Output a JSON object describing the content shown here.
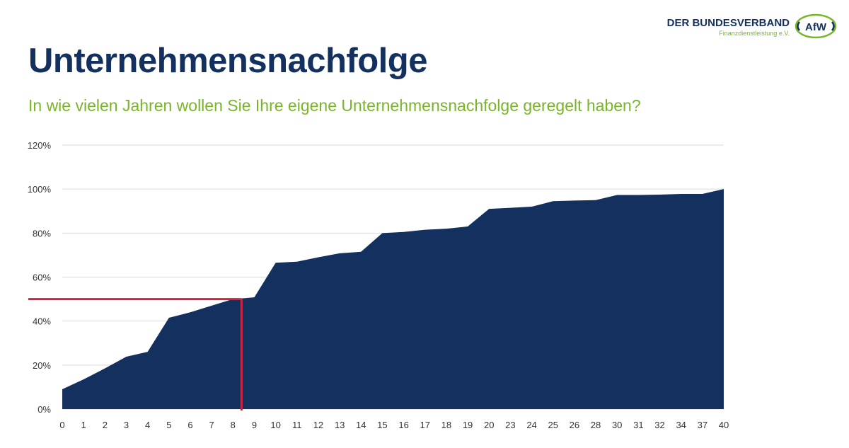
{
  "header": {
    "title": "Unternehmensnachfolge",
    "subtitle": "In wie vielen Jahren wollen Sie Ihre eigene Unternehmensnachfolge geregelt haben?"
  },
  "logo": {
    "name": "DER BUNDESVERBAND",
    "sub": "Finanzdienstleistung e.V.",
    "mark": "AfW"
  },
  "colors": {
    "title": "#13305e",
    "subtitle": "#78b529",
    "area": "#13305e",
    "marker": "#d1243f",
    "grid": "#d9d9d9"
  },
  "chart_data": {
    "type": "area",
    "x": [
      "0",
      "1",
      "2",
      "3",
      "4",
      "5",
      "6",
      "7",
      "8",
      "9",
      "10",
      "11",
      "12",
      "13",
      "14",
      "15",
      "16",
      "17",
      "18",
      "19",
      "20",
      "23",
      "24",
      "25",
      "26",
      "28",
      "30",
      "31",
      "32",
      "34",
      "37",
      "40"
    ],
    "values": [
      0.09,
      0.135,
      0.185,
      0.238,
      0.26,
      0.415,
      0.44,
      0.47,
      0.5,
      0.508,
      0.665,
      0.67,
      0.69,
      0.708,
      0.715,
      0.8,
      0.805,
      0.815,
      0.82,
      0.83,
      0.91,
      0.915,
      0.92,
      0.945,
      0.948,
      0.95,
      0.973,
      0.973,
      0.975,
      0.978,
      0.978,
      1.0
    ],
    "y_ticks": [
      "0%",
      "20%",
      "40%",
      "60%",
      "80%",
      "100%",
      "120%"
    ],
    "ylim": [
      0,
      1.2
    ],
    "grid": true,
    "legend": "none",
    "reference": {
      "y": 0.5,
      "x_index": 8.4
    }
  }
}
